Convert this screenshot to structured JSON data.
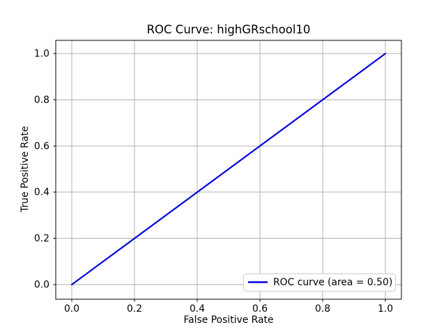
{
  "chart_data": {
    "type": "line",
    "title": "ROC Curve: highGRschool10",
    "xlabel": "False Positive Rate",
    "ylabel": "True Positive Rate",
    "xlim": [
      -0.05,
      1.05
    ],
    "ylim": [
      -0.05,
      1.05
    ],
    "xticks": [
      "0.0",
      "0.2",
      "0.4",
      "0.6",
      "0.8",
      "1.0"
    ],
    "yticks": [
      "0.0",
      "0.2",
      "0.4",
      "0.6",
      "0.8",
      "1.0"
    ],
    "grid": true,
    "auc": 0.5,
    "series": [
      {
        "name": "ROC curve (area = 0.50)",
        "x": [
          0.0,
          1.0
        ],
        "y": [
          0.0,
          1.0
        ],
        "color": "#0000dd",
        "linewidth": 2.2
      }
    ],
    "legend": {
      "position": "lower right",
      "entries": [
        {
          "label": "ROC curve (area = 0.50)",
          "color": "#0000dd"
        }
      ]
    }
  },
  "colors": {
    "background": "#ffffff",
    "grid": "#b2b2b2",
    "spine": "#000000",
    "tick": "#000000",
    "legend_border": "#cccccc",
    "legend_fill": "#ffffff"
  }
}
